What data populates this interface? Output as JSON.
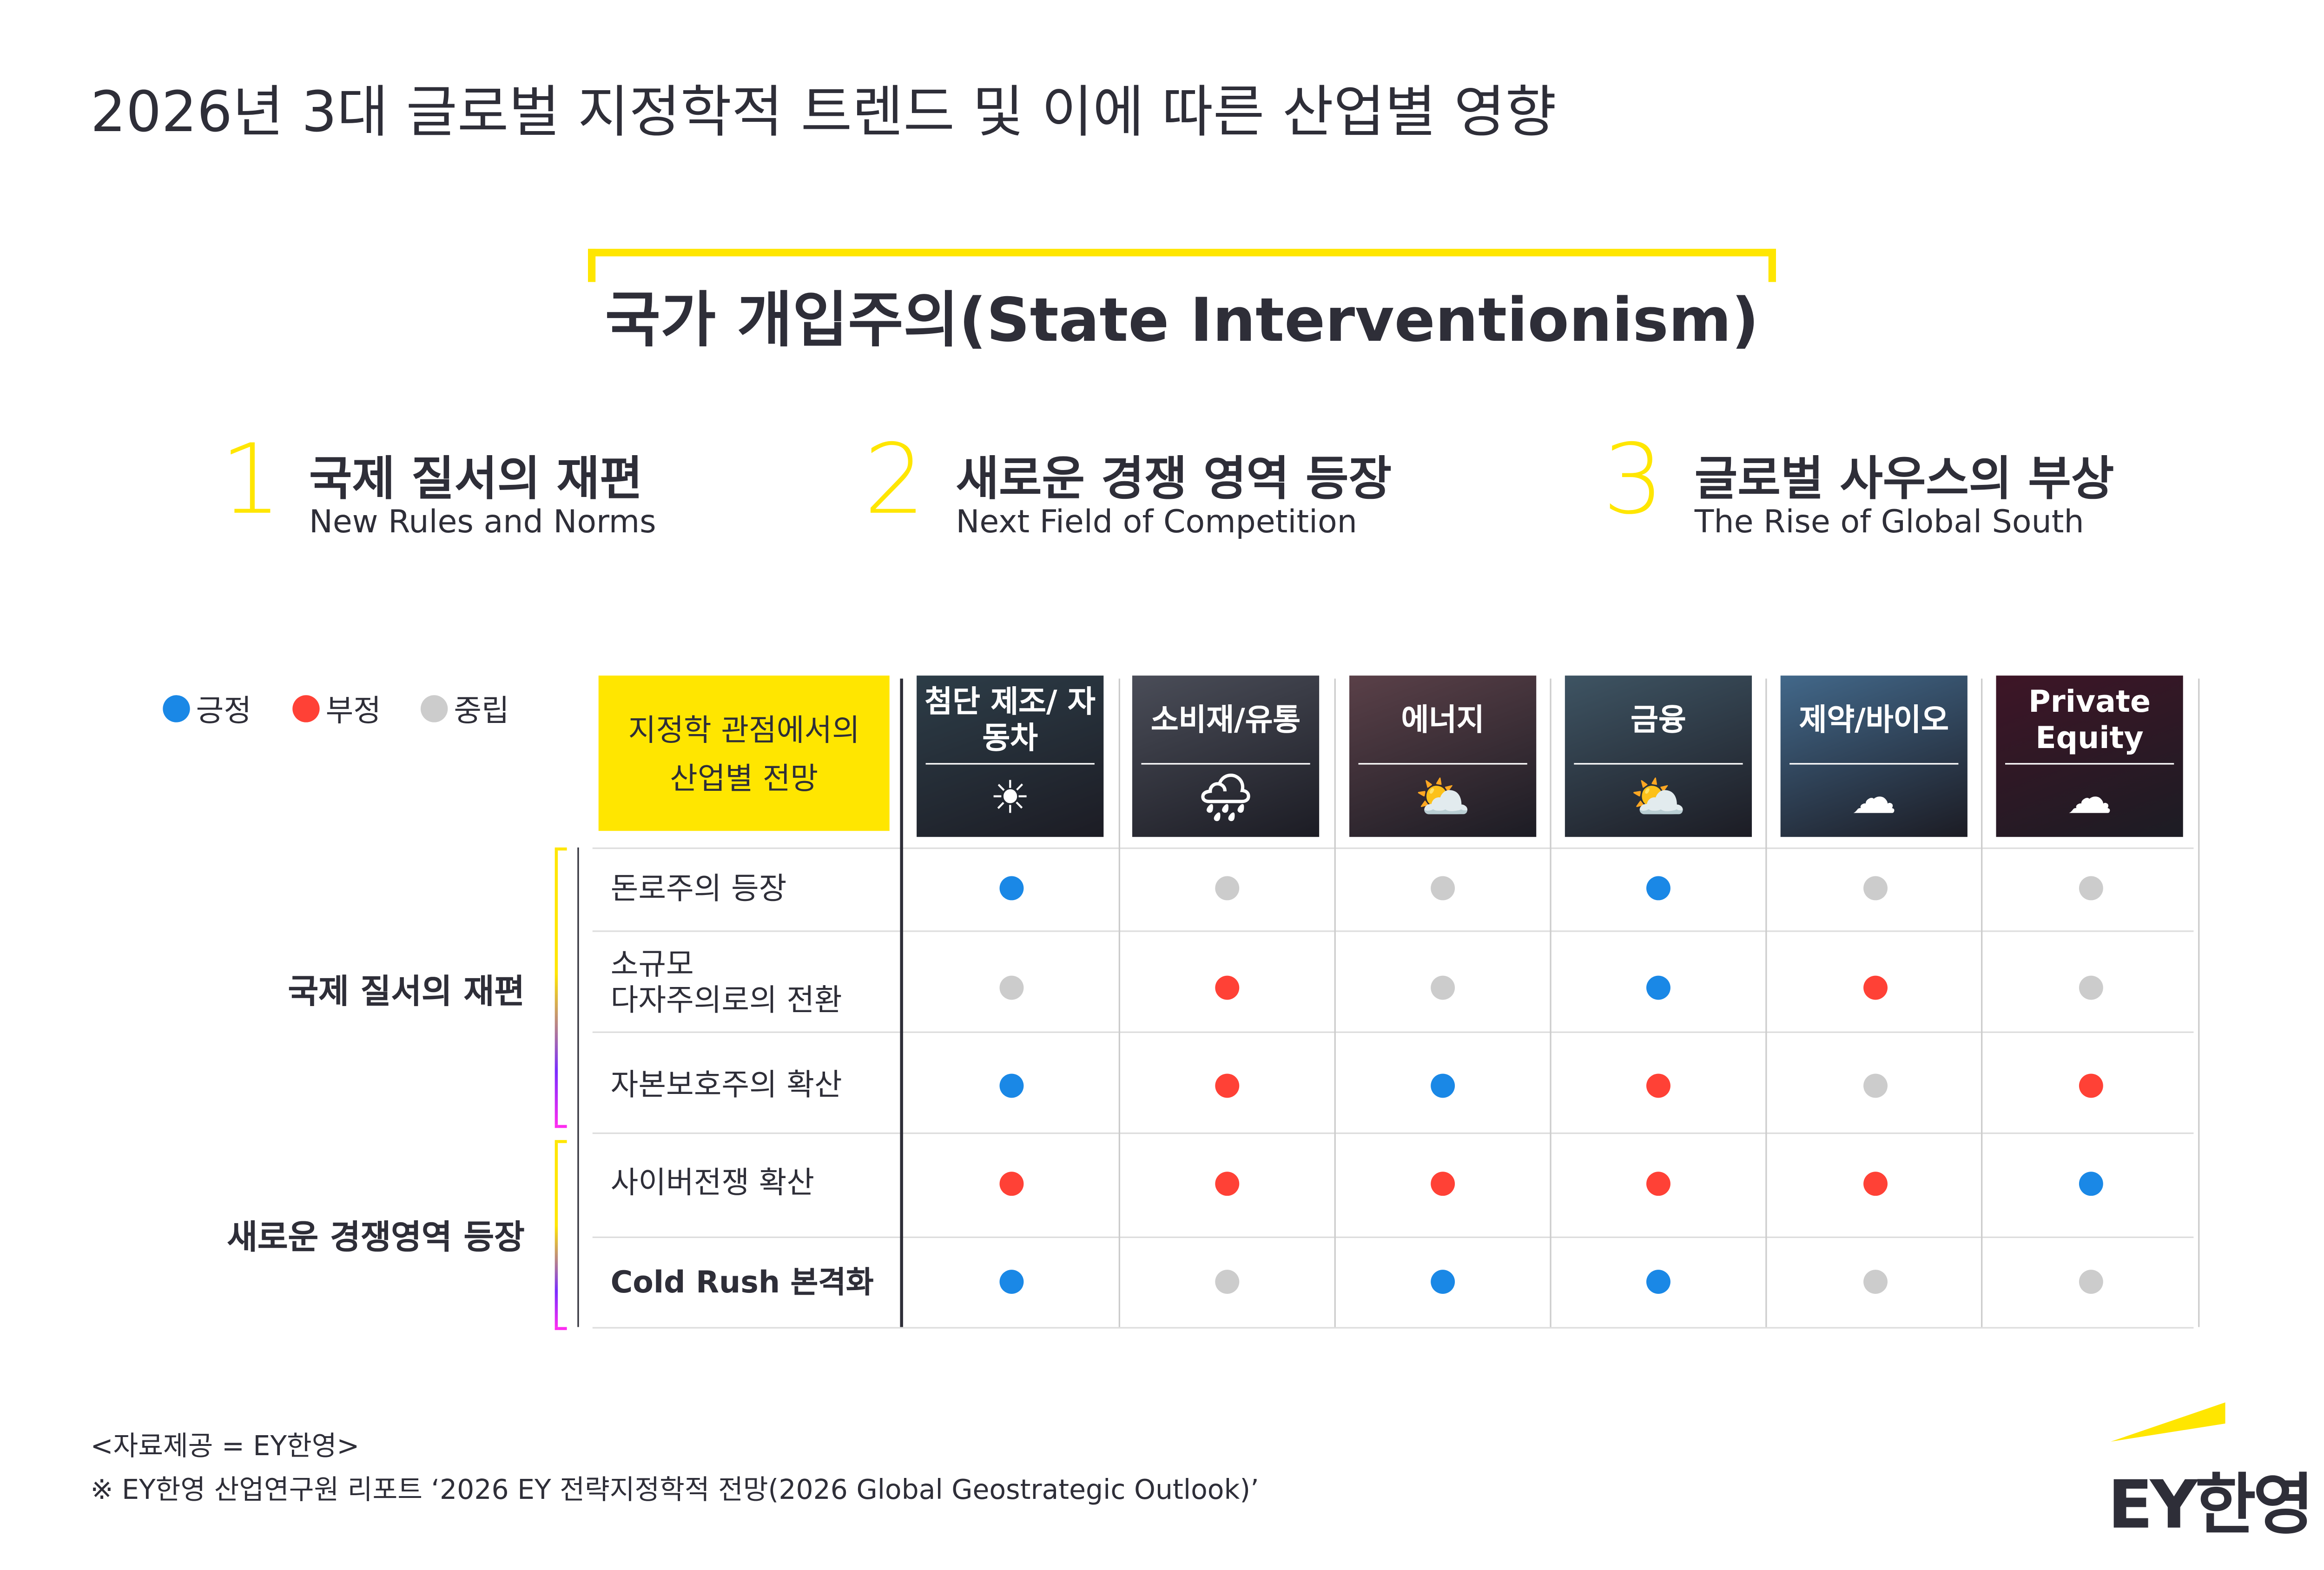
{
  "title": "2026년 3대 글로벌 지정학적 트렌드 및 이에 따른 산업별 영향",
  "main_heading": "국가 개입주의(State Interventionism)",
  "trends": [
    {
      "number": "1",
      "title": "국제 질서의 재편",
      "subtitle": "New Rules and Norms"
    },
    {
      "number": "2",
      "title": "새로운 경쟁 영역 등장",
      "subtitle": "Next Field of Competition"
    },
    {
      "number": "3",
      "title": "글로벌 사우스의 부상",
      "subtitle": "The Rise of Global South"
    }
  ],
  "legend": [
    {
      "label": "긍정",
      "color": "#1a88e6"
    },
    {
      "label": "부정",
      "color": "#ff4136"
    },
    {
      "label": "중립",
      "color": "#cccccc"
    }
  ],
  "table": {
    "header_line1": "지정학 관점에서의",
    "header_line2": "산업별 전망",
    "header_color": "#ffe600",
    "columns": [
      {
        "label": "첨단 제조/ 자동차",
        "icon": "sun-icon",
        "glyph": "☀",
        "bg": "#2d3d48"
      },
      {
        "label": "소비재/유통",
        "icon": "rain-cloud-icon",
        "glyph": "🌧",
        "bg": "#4a4d58"
      },
      {
        "label": "에너지",
        "icon": "partly-sunny-icon",
        "glyph": "⛅",
        "bg": "#5a4048"
      },
      {
        "label": "금융",
        "icon": "partly-sunny-icon",
        "glyph": "⛅",
        "bg": "#3e5463"
      },
      {
        "label": "제약/바이오",
        "icon": "cloud-icon",
        "glyph": "☁",
        "bg": "#42688a"
      },
      {
        "label": "Private Equity",
        "icon": "cloud-icon",
        "glyph": "☁",
        "bg": "#3e1526"
      }
    ],
    "groups": [
      {
        "label": "국제 질서의 재편"
      },
      {
        "label": "새로운 경쟁영역 등장"
      }
    ],
    "rows": [
      {
        "label": "돈로주의 등장",
        "values": [
          "positive",
          "neutral",
          "neutral",
          "positive",
          "neutral",
          "neutral"
        ]
      },
      {
        "label": "소규모 다자주의로의 전환",
        "line1": "소규모",
        "line2": "다자주의로의 전환",
        "values": [
          "neutral",
          "negative",
          "neutral",
          "positive",
          "negative",
          "neutral"
        ]
      },
      {
        "label": "자본보호주의 확산",
        "values": [
          "positive",
          "negative",
          "positive",
          "negative",
          "neutral",
          "negative"
        ]
      },
      {
        "label": "사이버전쟁 확산",
        "values": [
          "negative",
          "negative",
          "negative",
          "negative",
          "negative",
          "positive"
        ]
      },
      {
        "label": "Cold Rush 본격화",
        "values": [
          "positive",
          "neutral",
          "positive",
          "positive",
          "neutral",
          "neutral"
        ]
      }
    ]
  },
  "footer": {
    "source": "<자료제공 = EY한영>",
    "note": "※ EY한영 산업연구원 리포트 ‘2026 EY 전략지정학적 전망(2026 Global Geostrategic Outlook)’"
  },
  "logo": {
    "text": "EY한영",
    "accent": "#ffe600"
  }
}
